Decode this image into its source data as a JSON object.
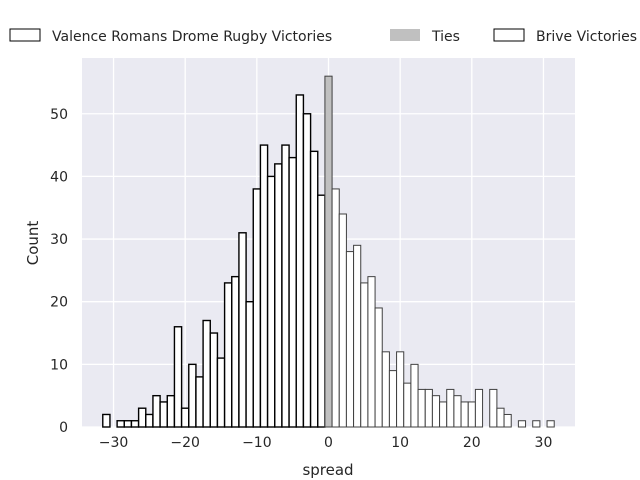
{
  "chart_data": {
    "type": "bar",
    "title": "",
    "xlabel": "spread",
    "ylabel": "Count",
    "xlim": [
      -34.4,
      34.4
    ],
    "ylim": [
      0,
      58.9
    ],
    "xticks": [
      -30,
      -20,
      -10,
      0,
      10,
      20,
      30
    ],
    "xtick_labels": [
      "−30",
      "−20",
      "−10",
      "0",
      "10",
      "20",
      "30"
    ],
    "yticks": [
      0,
      10,
      20,
      30,
      40,
      50
    ],
    "ytick_labels": [
      "0",
      "10",
      "20",
      "30",
      "40",
      "50"
    ],
    "grid": true,
    "legend_placement": "top-center, above plot",
    "series": [
      {
        "name": "Valence Romans Drome Rugby Victories",
        "color": "#ffffff",
        "edge": "#000000",
        "x": [
          -31,
          -30,
          -29,
          -28,
          -27,
          -26,
          -25,
          -24,
          -23,
          -22,
          -21,
          -20,
          -19,
          -18,
          -17,
          -16,
          -15,
          -14,
          -13,
          -12,
          -11,
          -10,
          -9,
          -8,
          -7,
          -6,
          -5,
          -4,
          -3,
          -2,
          -1
        ],
        "values": [
          2,
          0,
          1,
          1,
          1,
          3,
          2,
          5,
          4,
          5,
          16,
          3,
          10,
          8,
          17,
          15,
          11,
          23,
          24,
          31,
          20,
          38,
          45,
          40,
          42,
          45,
          43,
          53,
          50,
          44,
          37
        ]
      },
      {
        "name": "Ties",
        "color": "#c0c0c0",
        "edge": "#404040",
        "x": [
          0
        ],
        "values": [
          56
        ]
      },
      {
        "name": "Brive Victories",
        "color": "#ffffff",
        "edge": "#404040",
        "x": [
          1,
          2,
          3,
          4,
          5,
          6,
          7,
          8,
          9,
          10,
          11,
          12,
          13,
          14,
          15,
          16,
          17,
          18,
          19,
          20,
          21,
          22,
          23,
          24,
          25,
          26,
          27,
          28,
          29,
          30,
          31
        ],
        "values": [
          38,
          34,
          28,
          29,
          23,
          24,
          19,
          12,
          9,
          12,
          7,
          10,
          6,
          6,
          5,
          4,
          6,
          5,
          4,
          4,
          6,
          0,
          6,
          3,
          2,
          0,
          1,
          0,
          1,
          0,
          1
        ]
      }
    ]
  },
  "colors": {
    "plot_bg": "#eaeaf2",
    "grid": "#ffffff"
  }
}
